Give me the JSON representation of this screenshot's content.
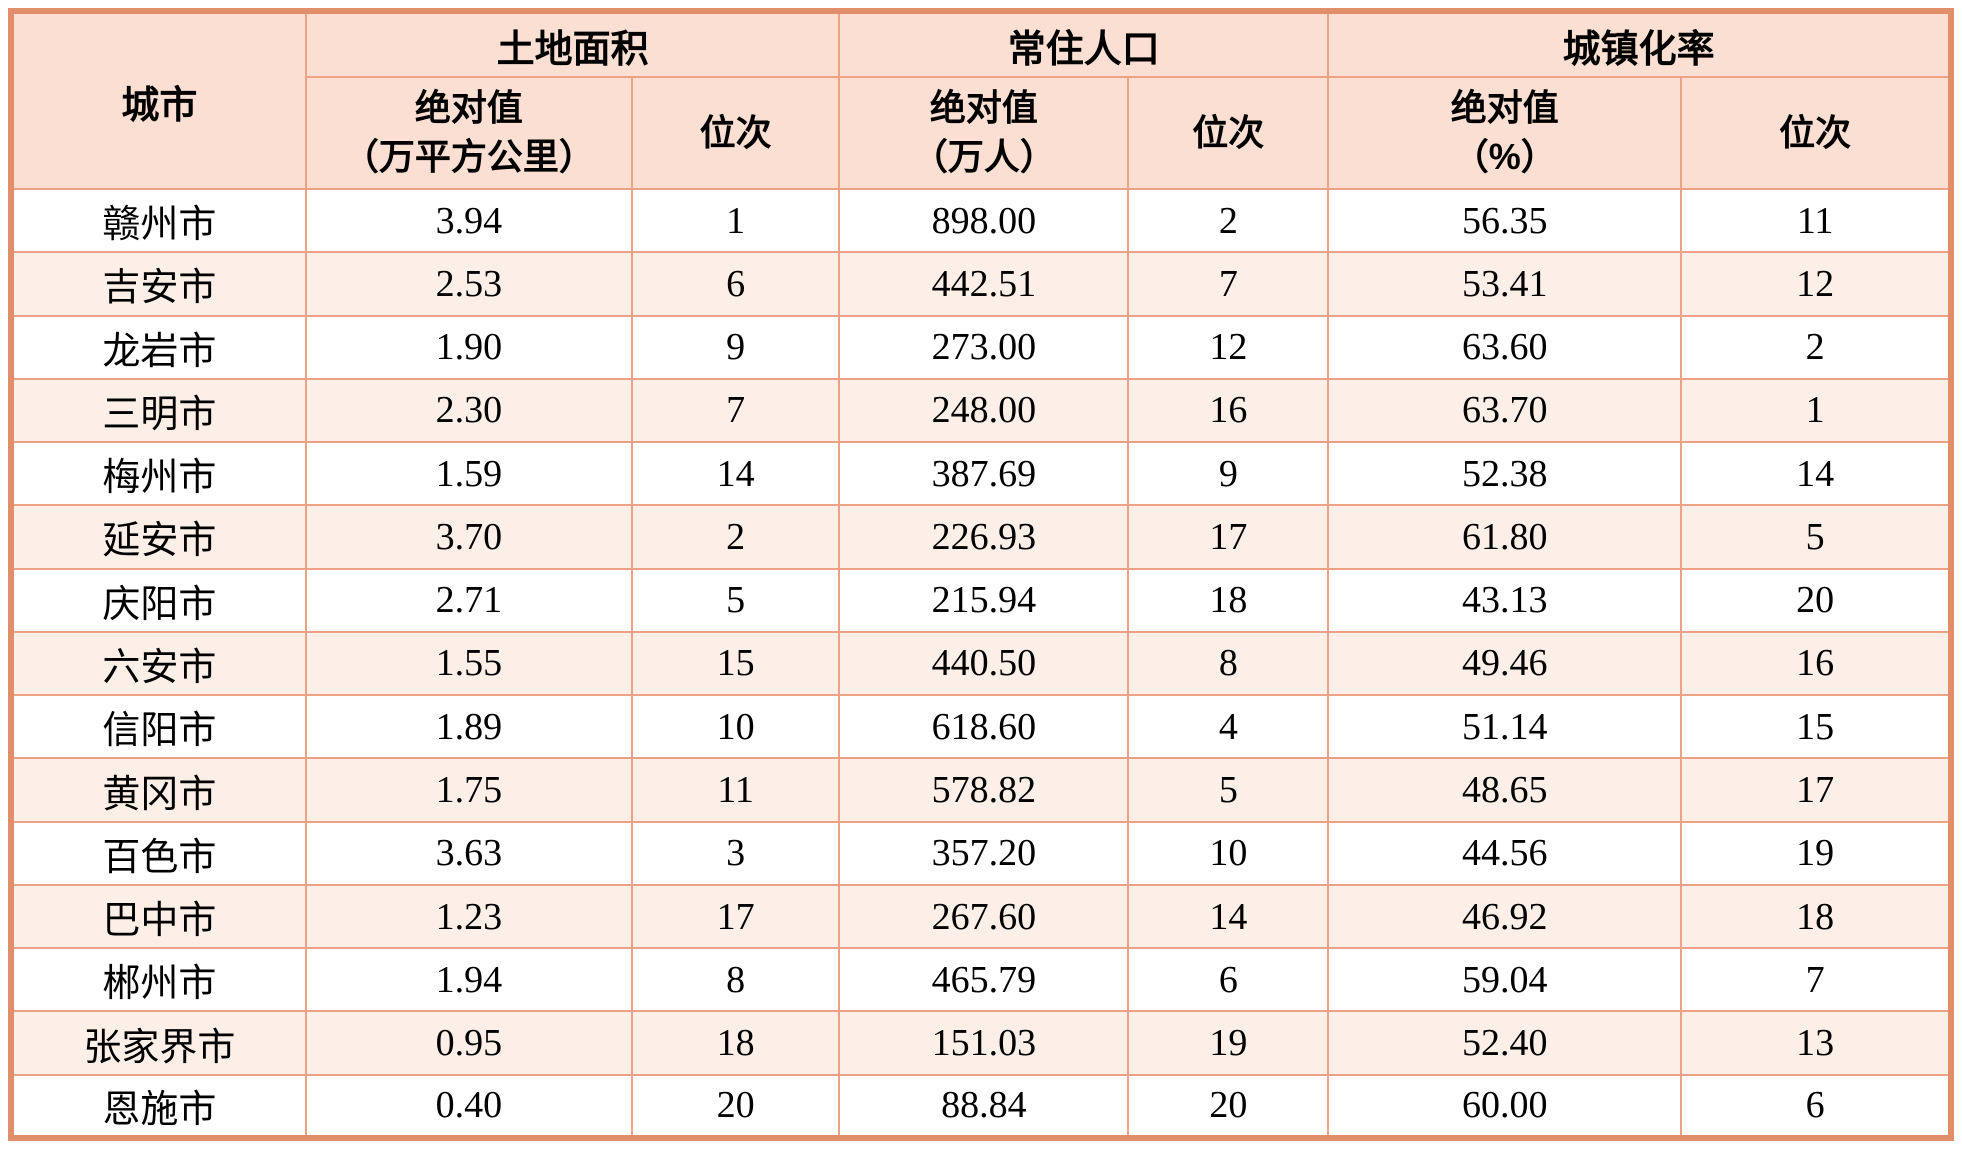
{
  "colors": {
    "outer_border": "#e18e6a",
    "inner_border": "#eda285",
    "header_bg": "#fadfd2",
    "row_alt_bg": "#fcefe8",
    "row_bg": "#ffffff",
    "text": "#000000"
  },
  "table": {
    "header": {
      "city": "城市",
      "groups": [
        {
          "label": "土地面积",
          "abs_label": "绝对值",
          "abs_unit": "（万平方公里）",
          "rank_label": "位次"
        },
        {
          "label": "常住人口",
          "abs_label": "绝对值",
          "abs_unit": "（万人）",
          "rank_label": "位次"
        },
        {
          "label": "城镇化率",
          "abs_label": "绝对值",
          "abs_unit": "（%）",
          "rank_label": "位次"
        }
      ]
    },
    "rows": [
      {
        "city": "赣州市",
        "land_abs": "3.94",
        "land_rank": "1",
        "pop_abs": "898.00",
        "pop_rank": "2",
        "urban_abs": "56.35",
        "urban_rank": "11"
      },
      {
        "city": "吉安市",
        "land_abs": "2.53",
        "land_rank": "6",
        "pop_abs": "442.51",
        "pop_rank": "7",
        "urban_abs": "53.41",
        "urban_rank": "12"
      },
      {
        "city": "龙岩市",
        "land_abs": "1.90",
        "land_rank": "9",
        "pop_abs": "273.00",
        "pop_rank": "12",
        "urban_abs": "63.60",
        "urban_rank": "2"
      },
      {
        "city": "三明市",
        "land_abs": "2.30",
        "land_rank": "7",
        "pop_abs": "248.00",
        "pop_rank": "16",
        "urban_abs": "63.70",
        "urban_rank": "1"
      },
      {
        "city": "梅州市",
        "land_abs": "1.59",
        "land_rank": "14",
        "pop_abs": "387.69",
        "pop_rank": "9",
        "urban_abs": "52.38",
        "urban_rank": "14"
      },
      {
        "city": "延安市",
        "land_abs": "3.70",
        "land_rank": "2",
        "pop_abs": "226.93",
        "pop_rank": "17",
        "urban_abs": "61.80",
        "urban_rank": "5"
      },
      {
        "city": "庆阳市",
        "land_abs": "2.71",
        "land_rank": "5",
        "pop_abs": "215.94",
        "pop_rank": "18",
        "urban_abs": "43.13",
        "urban_rank": "20"
      },
      {
        "city": "六安市",
        "land_abs": "1.55",
        "land_rank": "15",
        "pop_abs": "440.50",
        "pop_rank": "8",
        "urban_abs": "49.46",
        "urban_rank": "16"
      },
      {
        "city": "信阳市",
        "land_abs": "1.89",
        "land_rank": "10",
        "pop_abs": "618.60",
        "pop_rank": "4",
        "urban_abs": "51.14",
        "urban_rank": "15"
      },
      {
        "city": "黄冈市",
        "land_abs": "1.75",
        "land_rank": "11",
        "pop_abs": "578.82",
        "pop_rank": "5",
        "urban_abs": "48.65",
        "urban_rank": "17"
      },
      {
        "city": "百色市",
        "land_abs": "3.63",
        "land_rank": "3",
        "pop_abs": "357.20",
        "pop_rank": "10",
        "urban_abs": "44.56",
        "urban_rank": "19"
      },
      {
        "city": "巴中市",
        "land_abs": "1.23",
        "land_rank": "17",
        "pop_abs": "267.60",
        "pop_rank": "14",
        "urban_abs": "46.92",
        "urban_rank": "18"
      },
      {
        "city": "郴州市",
        "land_abs": "1.94",
        "land_rank": "8",
        "pop_abs": "465.79",
        "pop_rank": "6",
        "urban_abs": "59.04",
        "urban_rank": "7"
      },
      {
        "city": "张家界市",
        "land_abs": "0.95",
        "land_rank": "18",
        "pop_abs": "151.03",
        "pop_rank": "19",
        "urban_abs": "52.40",
        "urban_rank": "13"
      },
      {
        "city": "恩施市",
        "land_abs": "0.40",
        "land_rank": "20",
        "pop_abs": "88.84",
        "pop_rank": "20",
        "urban_abs": "60.00",
        "urban_rank": "6"
      }
    ]
  }
}
